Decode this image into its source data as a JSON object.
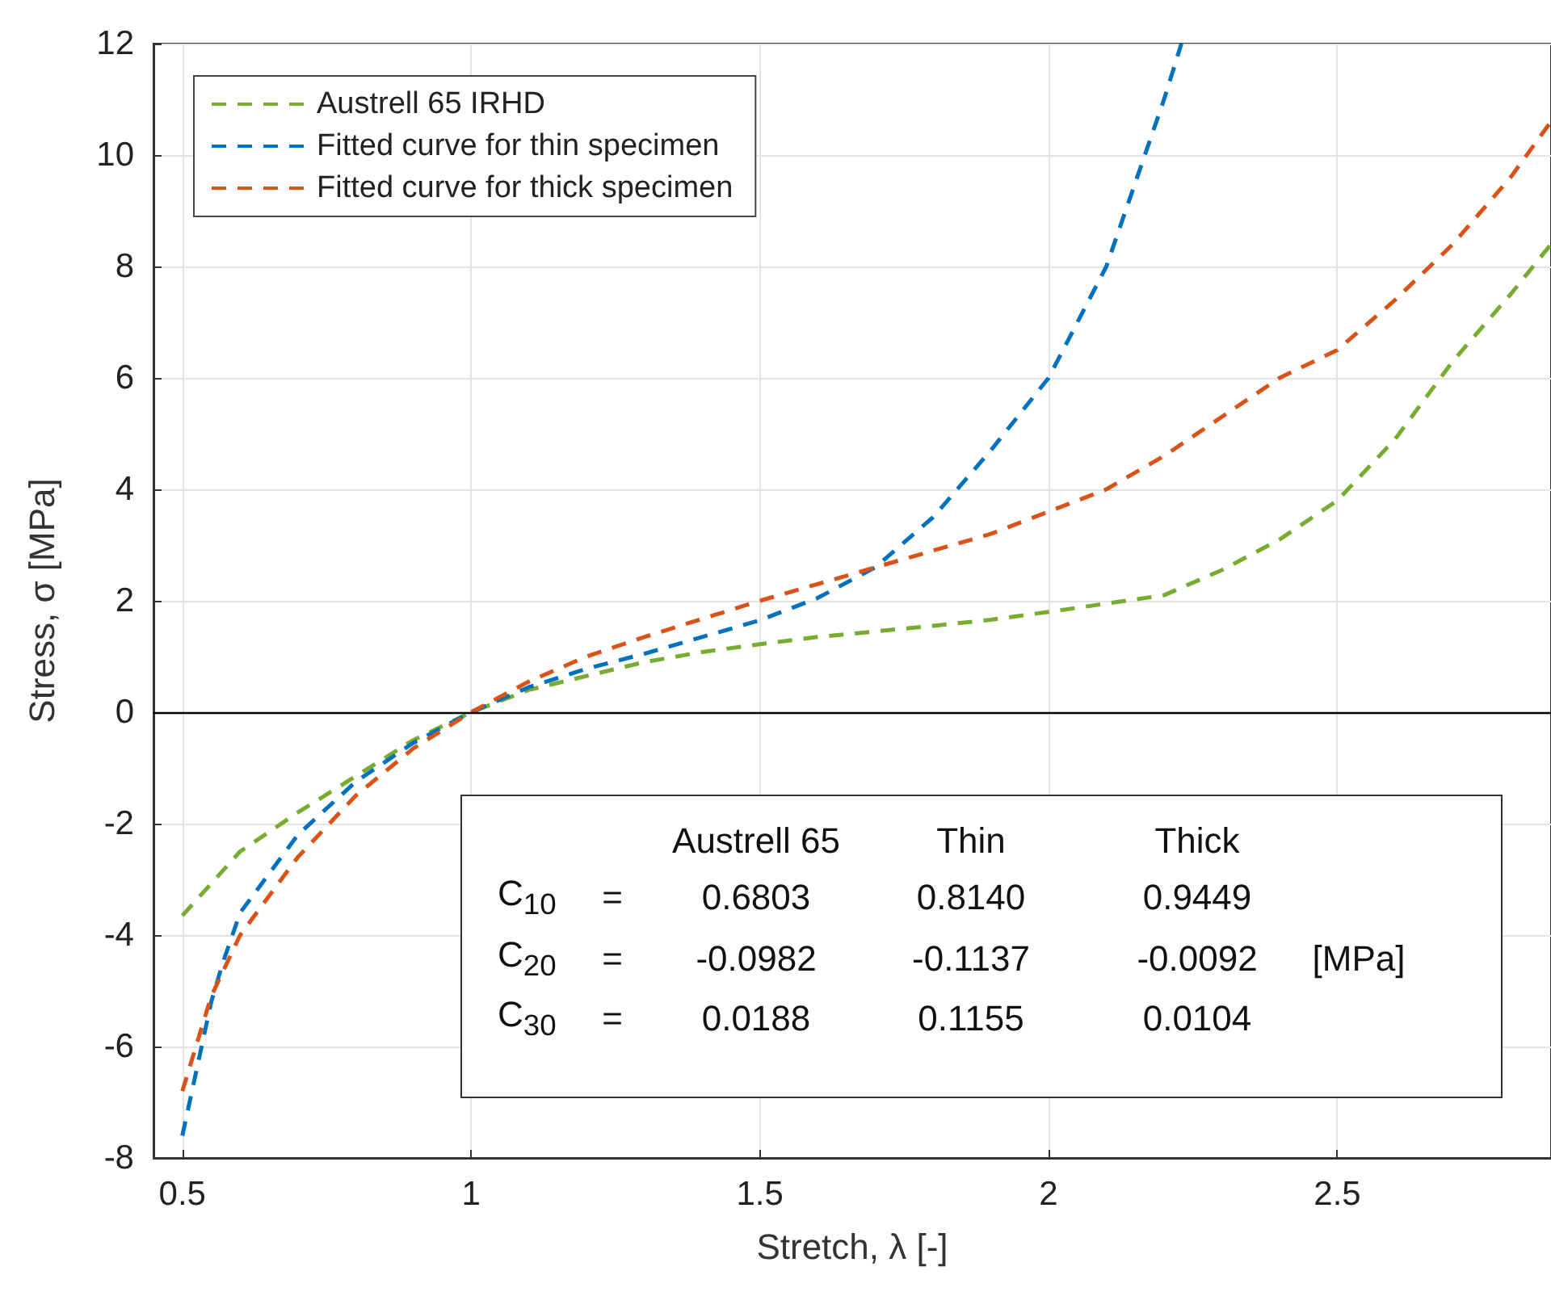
{
  "chart_data": {
    "type": "line",
    "xlabel": "Stretch, λ [-]",
    "ylabel": "Stress, σ [MPa]",
    "xlim": [
      0.45,
      2.87
    ],
    "ylim": [
      -8,
      12
    ],
    "xticks": [
      0.5,
      1,
      1.5,
      2,
      2.5
    ],
    "yticks": [
      -8,
      -6,
      -4,
      -2,
      0,
      2,
      4,
      6,
      8,
      10,
      12
    ],
    "grid": true,
    "legend": "top left",
    "line_style": "dashed",
    "marker": "none",
    "ref_lines": [
      {
        "axis": "y",
        "value": 0,
        "color": "#000000"
      }
    ],
    "series": [
      {
        "name": "Austrell 65 IRHD",
        "color": "#77ac30",
        "x": [
          0.5,
          0.6,
          0.7,
          0.8,
          0.9,
          1,
          1.1,
          1.2,
          1.3,
          1.4,
          1.5,
          1.6,
          1.7,
          1.8,
          1.9,
          2.0,
          2.1,
          2.2,
          2.3,
          2.4,
          2.5,
          2.6,
          2.7,
          2.8,
          2.87
        ],
        "values": [
          -3.65,
          -2.5,
          -1.8,
          -1.15,
          -0.5,
          0,
          0.4,
          0.65,
          0.9,
          1.08,
          1.22,
          1.35,
          1.45,
          1.55,
          1.66,
          1.8,
          1.95,
          2.1,
          2.55,
          3.1,
          3.8,
          4.9,
          6.3,
          7.5,
          8.4
        ]
      },
      {
        "name": "Fitted curve for thin specimen",
        "color": "#0072bd",
        "x": [
          0.5,
          0.55,
          0.57,
          0.6,
          0.7,
          0.8,
          0.9,
          1,
          1.1,
          1.2,
          1.3,
          1.4,
          1.5,
          1.6,
          1.7,
          1.8,
          1.9,
          2.0,
          2.1,
          2.2,
          2.23
        ],
        "values": [
          -7.6,
          -5.2,
          -4.5,
          -3.6,
          -2.2,
          -1.25,
          -0.55,
          0,
          0.45,
          0.78,
          1.05,
          1.35,
          1.65,
          2.05,
          2.6,
          3.5,
          4.7,
          6.0,
          8.0,
          11.0,
          12
        ]
      },
      {
        "name": "Fitted curve for thick specimen",
        "color": "#d95319",
        "x": [
          0.5,
          0.55,
          0.6,
          0.7,
          0.8,
          0.9,
          1,
          1.1,
          1.2,
          1.3,
          1.5,
          1.7,
          1.9,
          2.0,
          2.1,
          2.2,
          2.3,
          2.4,
          2.5,
          2.6,
          2.7,
          2.8,
          2.87
        ],
        "values": [
          -6.8,
          -5.1,
          -4.0,
          -2.6,
          -1.5,
          -0.65,
          0,
          0.55,
          1.0,
          1.35,
          2.0,
          2.6,
          3.2,
          3.6,
          4.0,
          4.6,
          5.3,
          6.0,
          6.5,
          7.4,
          8.4,
          9.6,
          10.6
        ]
      }
    ],
    "annotations": [
      "Austrell 65",
      "Thin",
      "Thick",
      "C$_{10}$",
      "=",
      "0.6803",
      "0.8140",
      "0.9449",
      "C$_{20}$",
      "=",
      "-0.0982",
      "-0.1137",
      "-0.0092",
      "C$_{30}$",
      "=",
      "0.0188",
      "0.1155",
      "0.0104",
      "[MPa]"
    ]
  }
}
